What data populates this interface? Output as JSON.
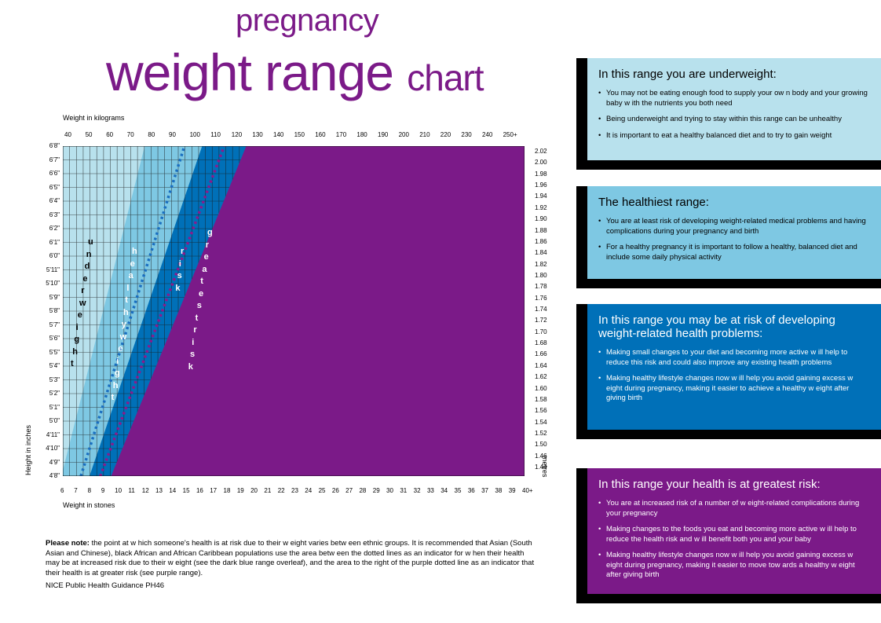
{
  "title_line1": "pregnancy",
  "title_line2_main": "weight range",
  "title_line2_small": "chart",
  "chart_data": {
    "type": "area",
    "x_top_label": "Weight in kilograms",
    "x_bottom_label": "Weight in stones",
    "y_left_label": "Height in inches",
    "y_right_label": "metres",
    "kg_ticks": [
      "40",
      "50",
      "60",
      "70",
      "80",
      "90",
      "100",
      "110",
      "120",
      "130",
      "140",
      "150",
      "160",
      "170",
      "180",
      "190",
      "200",
      "210",
      "220",
      "230",
      "240",
      "250+"
    ],
    "stone_ticks": [
      "6",
      "7",
      "8",
      "9",
      "10",
      "11",
      "12",
      "13",
      "14",
      "15",
      "16",
      "17",
      "18",
      "19",
      "20",
      "21",
      "22",
      "23",
      "24",
      "25",
      "26",
      "27",
      "28",
      "29",
      "30",
      "31",
      "32",
      "33",
      "34",
      "35",
      "36",
      "37",
      "38",
      "39",
      "40+"
    ],
    "height_ticks": [
      "6'8\"",
      "6'7\"",
      "6'6\"",
      "6'5\"",
      "6'4\"",
      "6'3\"",
      "6'2\"",
      "6'1\"",
      "6'0\"",
      "5'11\"",
      "5'10\"",
      "5'9\"",
      "5'8\"",
      "5'7\"",
      "5'6\"",
      "5'5\"",
      "5'4\"",
      "5'3\"",
      "5'2\"",
      "5'1\"",
      "5'0\"",
      "4'11\"",
      "4'10\"",
      "4'9\"",
      "4'8\""
    ],
    "metre_ticks": [
      "2.02",
      "2.00",
      "1.98",
      "1.96",
      "1.94",
      "1.92",
      "1.90",
      "1.88",
      "1.86",
      "1.84",
      "1.82",
      "1.80",
      "1.78",
      "1.76",
      "1.74",
      "1.72",
      "1.70",
      "1.68",
      "1.66",
      "1.64",
      "1.62",
      "1.60",
      "1.58",
      "1.56",
      "1.54",
      "1.52",
      "1.50",
      "1.46",
      "1.44"
    ],
    "stone_range": [
      6,
      40
    ],
    "height_range_in": [
      56,
      80
    ],
    "bmi_boundaries": [
      18.5,
      25,
      30
    ],
    "dotted_bmi_boundaries": [
      23,
      27.5
    ],
    "colors": {
      "underweight": "#b8e1ed",
      "healthy": "#7ec8e3",
      "risk": "#0070b8",
      "greatest_risk": "#7b1a88",
      "dotted_light": "#1a6fc0",
      "dotted_purple": "#8c1a8c",
      "grid": "#1a1a1a"
    },
    "band_words": [
      {
        "word": "underweight",
        "region": "underweight"
      },
      {
        "word": "healthy weight",
        "region": "healthy"
      },
      {
        "word": "risk",
        "region": "risk"
      },
      {
        "word": "greatest risk",
        "region": "greatest_risk"
      }
    ]
  },
  "panels": [
    {
      "id": "underweight",
      "color": "#b8e1ed",
      "text_color": "#000000",
      "heading": "In this range you are underweight:",
      "items": [
        "You may not be eating enough food to supply your ow n body and your growing baby w ith the nutrients you both need",
        "Being underweight and trying to stay within this range can be unhealthy",
        "It is important to eat a healthy balanced diet and to try to gain weight"
      ]
    },
    {
      "id": "healthy",
      "color": "#7ec8e3",
      "text_color": "#000000",
      "heading": "The healthiest range:",
      "items": [
        "You are at least risk of developing weight-related medical problems and having complications during your pregnancy and birth",
        "For a healthy pregnancy it is important to follow a healthy, balanced diet and include some daily physical activity"
      ]
    },
    {
      "id": "risk",
      "color": "#0070b8",
      "text_color": "#ffffff",
      "heading": "In this range you may be at risk of developing weight-related health problems:",
      "items": [
        "Making small changes to your diet and becoming more active w ill help to reduce this risk and could also improve any existing health problems",
        "Making healthy lifestyle changes now w ill help you avoid gaining excess w eight during pregnancy, making it easier to achieve a healthy w eight after giving birth"
      ]
    },
    {
      "id": "greatest_risk",
      "color": "#7b1a88",
      "text_color": "#ffffff",
      "heading": "In this range your health is at greatest risk:",
      "items": [
        "You are at increased risk of a number of w eight-related complications during your pregnancy",
        "Making changes to the foods you eat and becoming more active w ill help to reduce the health risk and w ill benefit both you and your baby",
        "Making healthy lifestyle changes now w ill help you avoid gaining excess w eight during pregnancy, making it easier to move tow ards a healthy w eight after giving birth"
      ]
    }
  ],
  "note": {
    "bold": "Please note:",
    "text": " the point at w hich someone's health is at risk due to their w eight varies betw een ethnic groups. It is recommended that Asian (South Asian and Chinese), black African and African Caribbean populations use the area betw een the dotted lines as an indicator for w hen their health may be at increased risk due to their w eight (see the dark blue range overleaf), and the area to the right of the purple dotted line as an indicator that their health is at greater risk (see purple range)."
  },
  "source": "NICE Public Health Guidance PH46"
}
